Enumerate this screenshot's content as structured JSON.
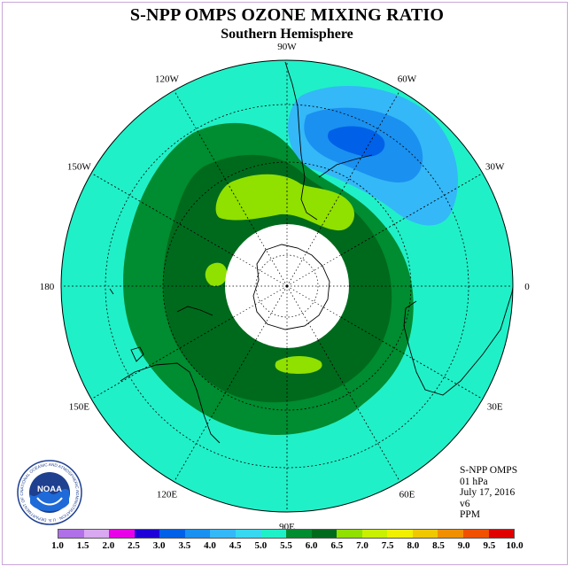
{
  "title": "S-NPP OMPS OZONE MIXING RATIO",
  "subtitle": "Southern Hemisphere",
  "longitude_labels": [
    {
      "text": "90W",
      "lon": -90
    },
    {
      "text": "60W",
      "lon": -60
    },
    {
      "text": "30W",
      "lon": -30
    },
    {
      "text": "0",
      "lon": 0
    },
    {
      "text": "30E",
      "lon": 30
    },
    {
      "text": "60E",
      "lon": 60
    },
    {
      "text": "90E",
      "lon": 90
    },
    {
      "text": "120E",
      "lon": 120
    },
    {
      "text": "150E",
      "lon": 150
    },
    {
      "text": "180",
      "lon": 180
    },
    {
      "text": "150W",
      "lon": -150
    },
    {
      "text": "120W",
      "lon": -120
    }
  ],
  "info": {
    "instrument": "S-NPP OMPS",
    "pressure": "01 hPa",
    "date": "July 17, 2016",
    "version": "v6",
    "units": "PPM"
  },
  "logo_text": "NOAA",
  "logo_ring_text": "NATIONAL OCEANIC AND ATMOSPHERIC ADMINISTRATION · U.S. DEPARTMENT OF COMMERCE",
  "colorbar": {
    "ticks": [
      "1.0",
      "1.5",
      "2.0",
      "2.5",
      "3.0",
      "3.5",
      "4.0",
      "4.5",
      "5.0",
      "5.5",
      "6.0",
      "6.5",
      "7.0",
      "7.5",
      "8.0",
      "8.5",
      "9.0",
      "9.5",
      "10.0"
    ],
    "colors": [
      "#b070e8",
      "#d8a8f0",
      "#e800e8",
      "#2000d8",
      "#0060e8",
      "#1a90f0",
      "#34b8f8",
      "#38d8f0",
      "#20f0c8",
      "#008c30",
      "#006a1c",
      "#90e000",
      "#c8f000",
      "#f0f000",
      "#f0c800",
      "#f09000",
      "#f05000",
      "#e00000",
      "#8a5030"
    ]
  },
  "legend_colors": {
    "background_ppm_5": "#20f0c8",
    "ppm_5_5": "#008c30",
    "ppm_6": "#006a1c",
    "ppm_6_5": "#90e000",
    "ppm_4": "#34b8f8",
    "ppm_3_5": "#1a90f0",
    "ppm_3": "#0060e8",
    "polar_night_mask": "#ffffff"
  }
}
